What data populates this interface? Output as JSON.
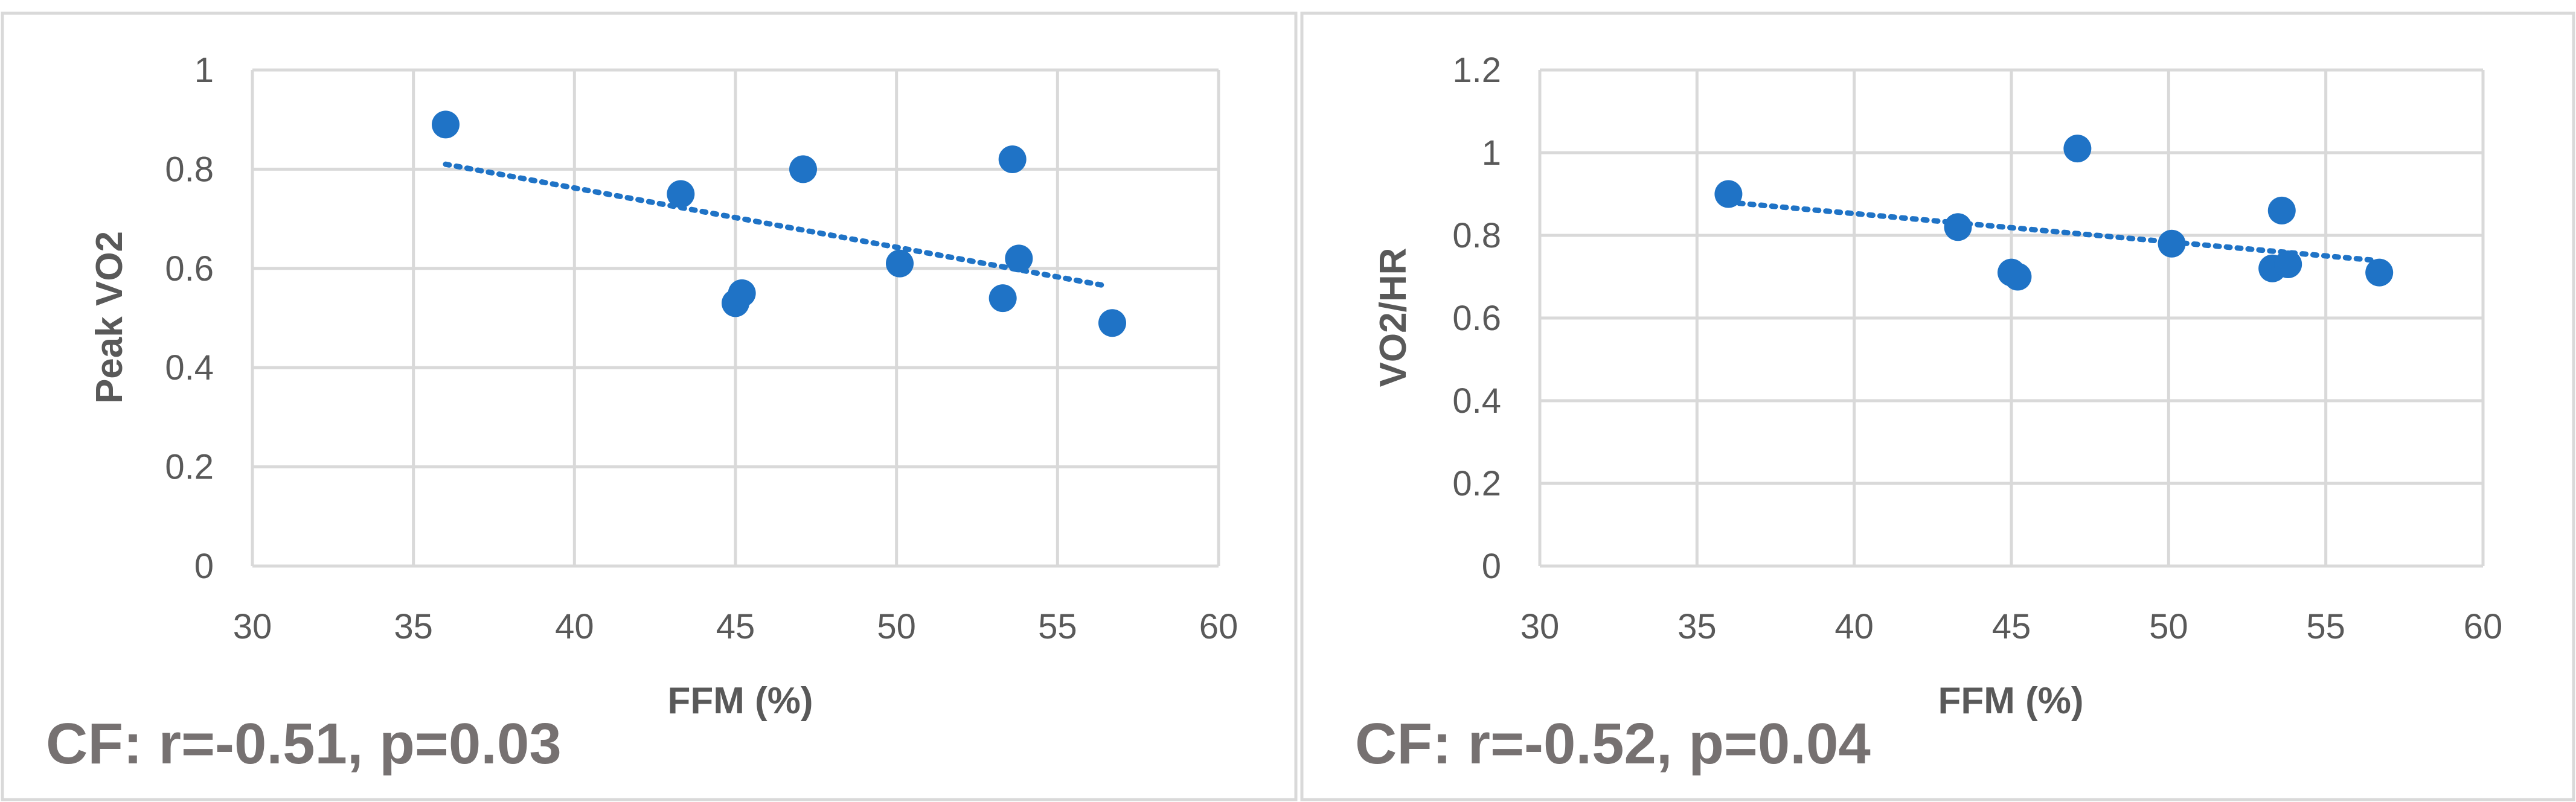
{
  "colors": {
    "marker": "#1f73c6",
    "trendline": "#1f73c6"
  },
  "chart_data": [
    {
      "type": "scatter",
      "title": "",
      "xlabel": "FFM (%)",
      "ylabel": "Peak VO2",
      "xlim": [
        30,
        60
      ],
      "ylim": [
        0,
        1
      ],
      "xticks": [
        30,
        35,
        40,
        45,
        50,
        55,
        60
      ],
      "yticks": [
        0,
        0.2,
        0.4,
        0.6,
        0.8,
        1
      ],
      "xtick_labels": [
        "30",
        "35",
        "40",
        "45",
        "50",
        "55",
        "60"
      ],
      "ytick_labels": [
        "0",
        "0.2",
        "0.4",
        "0.6",
        "0.8",
        "1"
      ],
      "grid": true,
      "legend": "none",
      "series": [
        {
          "x": [
            36.0,
            43.3,
            45.0,
            45.2,
            47.1,
            50.1,
            53.3,
            53.6,
            53.8,
            56.7
          ],
          "y": [
            0.89,
            0.75,
            0.53,
            0.55,
            0.8,
            0.61,
            0.54,
            0.82,
            0.62,
            0.49
          ]
        }
      ],
      "trendline": {
        "type": "linear",
        "x": [
          36.0,
          56.5
        ],
        "y": [
          0.81,
          0.565
        ]
      },
      "annotation": "CF: r=-0.51, p=0.03"
    },
    {
      "type": "scatter",
      "title": "",
      "xlabel": "FFM (%)",
      "ylabel": "VO2/HR",
      "xlim": [
        30,
        60
      ],
      "ylim": [
        0,
        1.2
      ],
      "xticks": [
        30,
        35,
        40,
        45,
        50,
        55,
        60
      ],
      "yticks": [
        0,
        0.2,
        0.4,
        0.6,
        0.8,
        1,
        1.2
      ],
      "xtick_labels": [
        "30",
        "35",
        "40",
        "45",
        "50",
        "55",
        "60"
      ],
      "ytick_labels": [
        "0",
        "0.2",
        "0.4",
        "0.6",
        "0.8",
        "1",
        "1.2"
      ],
      "grid": true,
      "legend": "none",
      "series": [
        {
          "x": [
            36.0,
            43.3,
            45.0,
            45.2,
            47.1,
            50.1,
            53.3,
            53.6,
            53.8,
            56.7
          ],
          "y": [
            0.9,
            0.82,
            0.71,
            0.7,
            1.01,
            0.78,
            0.72,
            0.86,
            0.73,
            0.71
          ]
        }
      ],
      "trendline": {
        "type": "linear",
        "x": [
          36.0,
          56.5
        ],
        "y": [
          0.88,
          0.74
        ]
      },
      "annotation": "CF: r=-0.52, p=0.04"
    }
  ]
}
